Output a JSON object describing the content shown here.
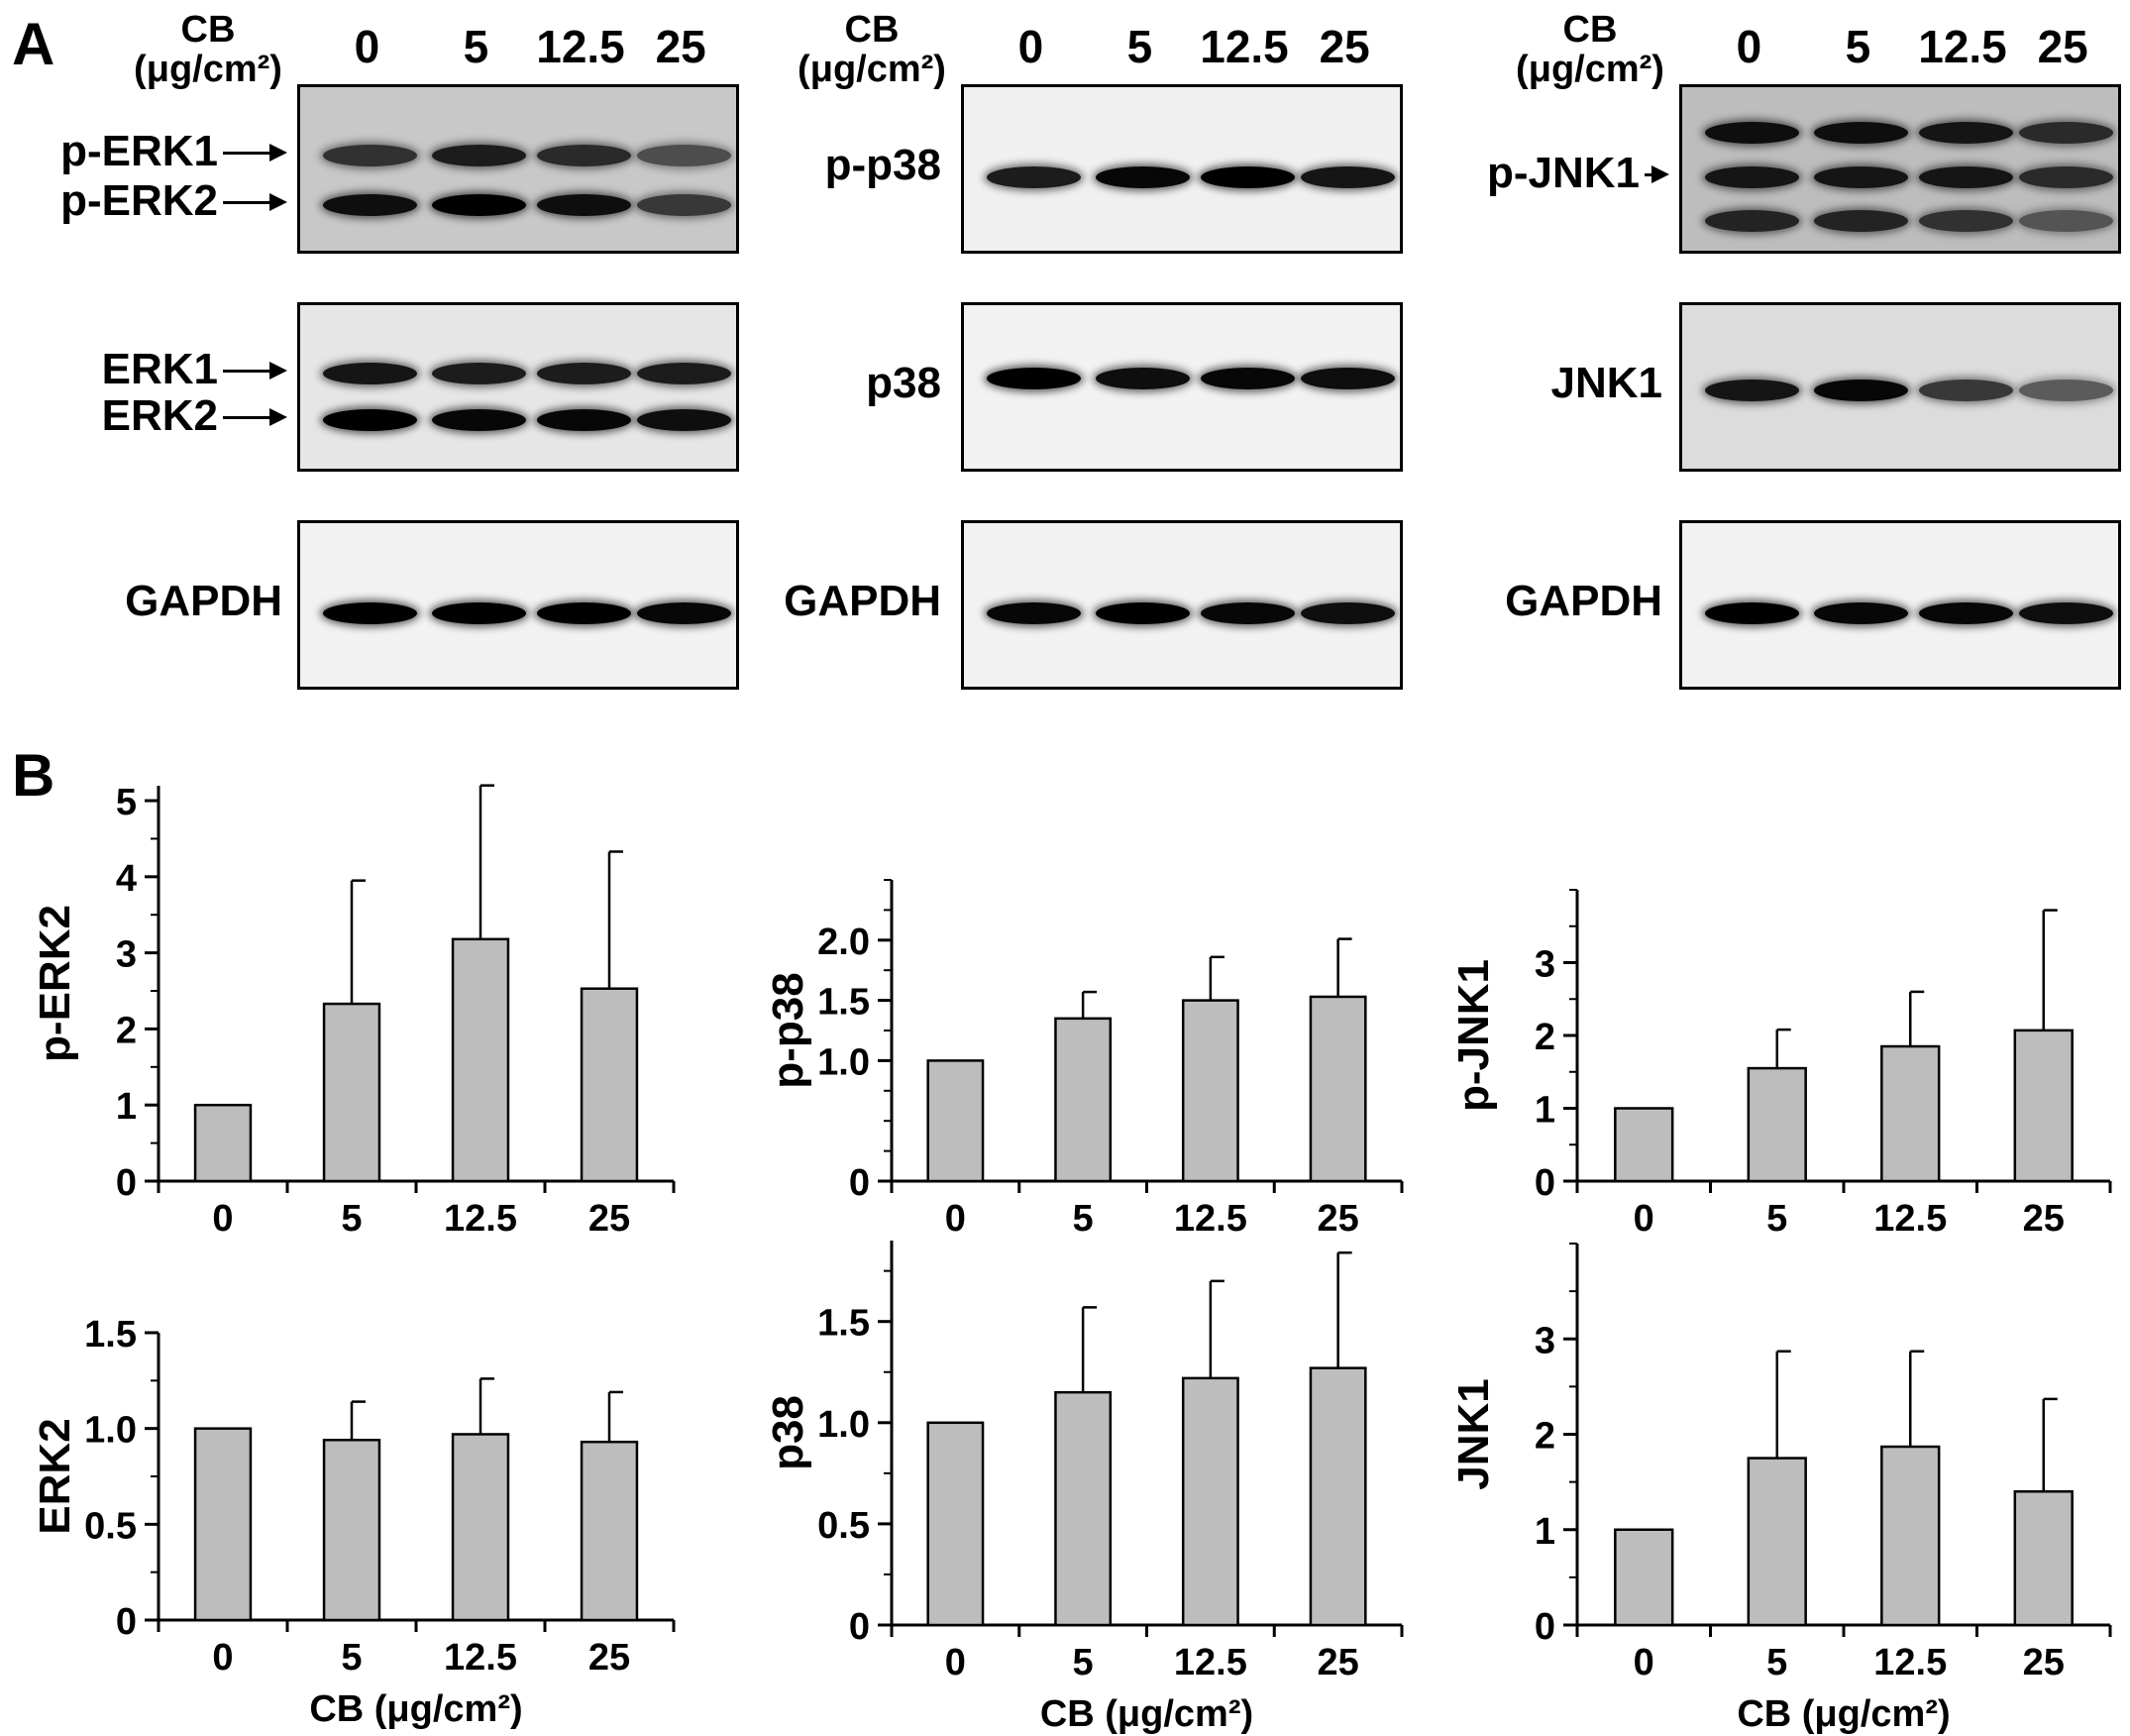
{
  "panels": {
    "a": "A",
    "b": "B"
  },
  "blots": [
    {
      "cb_line1": "CB",
      "cb_line2": "(μg/cm²)",
      "lanes": [
        "0",
        "5",
        "12.5",
        "25"
      ],
      "rows": [
        {
          "labels": [
            "p-ERK1",
            "p-ERK2"
          ],
          "arrows": true,
          "bg": "#c8c8c8",
          "bands": [
            {
              "y": 0.42,
              "i": [
                0.65,
                0.8,
                0.7,
                0.45
              ]
            },
            {
              "y": 0.72,
              "i": [
                0.9,
                1.0,
                0.9,
                0.6
              ]
            }
          ]
        },
        {
          "labels": [
            "ERK1",
            "ERK2"
          ],
          "arrows": true,
          "bg": "#e6e6e6",
          "bands": [
            {
              "y": 0.42,
              "i": [
                0.85,
                0.8,
                0.8,
                0.8
              ]
            },
            {
              "y": 0.7,
              "i": [
                1.0,
                0.95,
                0.95,
                0.9
              ]
            }
          ]
        },
        {
          "labels": [
            "GAPDH"
          ],
          "arrows": false,
          "bg": "#f2f2f2",
          "bands": [
            {
              "y": 0.55,
              "i": [
                1.0,
                1.0,
                1.0,
                0.95
              ]
            }
          ]
        }
      ]
    },
    {
      "cb_line1": "CB",
      "cb_line2": "(μg/cm²)",
      "lanes": [
        "0",
        "5",
        "12.5",
        "25"
      ],
      "rows": [
        {
          "labels": [
            "p-p38"
          ],
          "arrows": false,
          "bg": "#f0f0f0",
          "bands": [
            {
              "y": 0.55,
              "i": [
                0.8,
                0.95,
                1.0,
                0.85
              ]
            }
          ]
        },
        {
          "labels": [
            "p38"
          ],
          "arrows": false,
          "bg": "#f2f2f2",
          "bands": [
            {
              "y": 0.45,
              "i": [
                1.0,
                0.9,
                0.95,
                0.9
              ]
            }
          ]
        },
        {
          "labels": [
            "GAPDH"
          ],
          "arrows": false,
          "bg": "#f2f2f2",
          "bands": [
            {
              "y": 0.55,
              "i": [
                0.95,
                1.0,
                0.95,
                0.9
              ]
            }
          ]
        }
      ]
    },
    {
      "cb_line1": "CB",
      "cb_line2": "(μg/cm²)",
      "lanes": [
        "0",
        "5",
        "12.5",
        "25"
      ],
      "rows": [
        {
          "labels": [
            "p-JNK1"
          ],
          "arrows": true,
          "bg": "#bdbdbd",
          "bands": [
            {
              "y": 0.28,
              "i": [
                0.9,
                0.9,
                0.85,
                0.7
              ]
            },
            {
              "y": 0.55,
              "i": [
                0.85,
                0.85,
                0.85,
                0.7
              ]
            },
            {
              "y": 0.82,
              "i": [
                0.75,
                0.75,
                0.65,
                0.4
              ]
            }
          ]
        },
        {
          "labels": [
            "JNK1"
          ],
          "arrows": false,
          "bg": "#dcdcdc",
          "bands": [
            {
              "y": 0.52,
              "i": [
                0.85,
                0.95,
                0.6,
                0.35
              ]
            }
          ]
        },
        {
          "labels": [
            "GAPDH"
          ],
          "arrows": false,
          "bg": "#f2f2f2",
          "bands": [
            {
              "y": 0.55,
              "i": [
                1.0,
                0.95,
                0.95,
                0.9
              ]
            }
          ]
        }
      ]
    }
  ],
  "chart_data": [
    {
      "type": "bar",
      "categories": [
        "0",
        "5",
        "12.5",
        "25"
      ],
      "values": [
        1.0,
        2.33,
        3.18,
        2.53
      ],
      "errors": [
        0,
        1.62,
        2.02,
        1.8
      ],
      "ylabel": "p-ERK2",
      "xlabel": "",
      "ylim": [
        0,
        5.3
      ],
      "yticks": [
        "0",
        "1",
        "2",
        "3",
        "4",
        "5"
      ],
      "ytick_values": [
        0,
        1,
        2,
        3,
        4,
        5
      ]
    },
    {
      "type": "bar",
      "categories": [
        "0",
        "5",
        "12.5",
        "25"
      ],
      "values": [
        1.0,
        1.35,
        1.5,
        1.53
      ],
      "errors": [
        0,
        0.22,
        0.36,
        0.48
      ],
      "ylabel": "p-p38",
      "xlabel": "",
      "ylim": [
        0,
        2.5
      ],
      "yticks": [
        "0",
        "1.0",
        "1.5",
        "2.0"
      ],
      "ytick_values": [
        0,
        1.0,
        1.5,
        2.0
      ]
    },
    {
      "type": "bar",
      "categories": [
        "0",
        "5",
        "12.5",
        "25"
      ],
      "values": [
        1.0,
        1.55,
        1.85,
        2.07
      ],
      "errors": [
        0,
        0.53,
        0.75,
        1.65
      ],
      "ylabel": "p-JNK1",
      "xlabel": "",
      "ylim": [
        0,
        4.0
      ],
      "yticks": [
        "0",
        "1",
        "2",
        "3"
      ],
      "ytick_values": [
        0,
        1,
        2,
        3
      ]
    },
    {
      "type": "bar",
      "categories": [
        "0",
        "5",
        "12.5",
        "25"
      ],
      "values": [
        1.0,
        0.94,
        0.97,
        0.93
      ],
      "errors": [
        0,
        0.2,
        0.29,
        0.26
      ],
      "ylabel": "ERK2",
      "xlabel": "CB (μg/cm²)",
      "ylim": [
        0,
        1.5
      ],
      "yticks": [
        "0",
        "0.5",
        "1.0",
        "1.5"
      ],
      "ytick_values": [
        0,
        0.5,
        1.0,
        1.5
      ]
    },
    {
      "type": "bar",
      "categories": [
        "0",
        "5",
        "12.5",
        "25"
      ],
      "values": [
        1.0,
        1.15,
        1.22,
        1.27
      ],
      "errors": [
        0,
        0.42,
        0.48,
        0.57
      ],
      "ylabel": "p38",
      "xlabel": "CB (μg/cm²)",
      "ylim": [
        0,
        1.9
      ],
      "yticks": [
        "0",
        "0.5",
        "1.0",
        "1.5"
      ],
      "ytick_values": [
        0,
        0.5,
        1.0,
        1.5
      ]
    },
    {
      "type": "bar",
      "categories": [
        "0",
        "5",
        "12.5",
        "25"
      ],
      "values": [
        1.0,
        1.75,
        1.87,
        1.4
      ],
      "errors": [
        0,
        1.12,
        1.0,
        0.97
      ],
      "ylabel": "JNK1",
      "xlabel": "CB (μg/cm²)",
      "ylim": [
        0,
        4.0
      ],
      "yticks": [
        "0",
        "1",
        "2",
        "3"
      ],
      "ytick_values": [
        0,
        1,
        2,
        3
      ]
    }
  ]
}
